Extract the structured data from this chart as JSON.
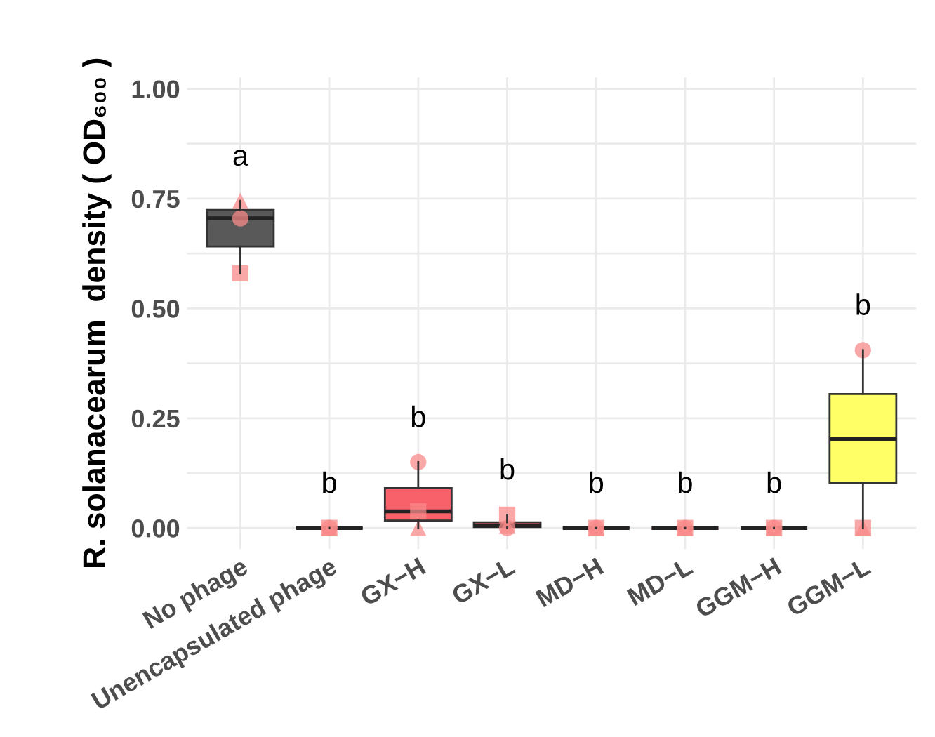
{
  "chart_data": {
    "type": "box",
    "ylabel": "R. solanacearum  density ( OD₆₀₀ )",
    "categories": [
      "No phage",
      "Unencapsulated phage",
      "GX−H",
      "GX−L",
      "MD−H",
      "MD−L",
      "GGM−H",
      "GGM−L"
    ],
    "colors": [
      "#595959",
      "#595959",
      "#f8606a",
      "#f8606a",
      "#f8606a",
      "#f8606a",
      "#ffff66",
      "#ffff66"
    ],
    "boxes": [
      {
        "low": 0.58,
        "q1": 0.641,
        "median": 0.705,
        "q3": 0.724,
        "high": 0.745
      },
      {
        "low": 0.0,
        "q1": 0.0,
        "median": 0.0,
        "q3": 0.0,
        "high": 0.0
      },
      {
        "low": 0.0,
        "q1": 0.017,
        "median": 0.038,
        "q3": 0.091,
        "high": 0.15
      },
      {
        "low": 0.0,
        "q1": 0.002,
        "median": 0.005,
        "q3": 0.013,
        "high": 0.03
      },
      {
        "low": 0.0,
        "q1": 0.0,
        "median": 0.0,
        "q3": 0.0,
        "high": 0.0
      },
      {
        "low": 0.0,
        "q1": 0.0,
        "median": 0.0,
        "q3": 0.0,
        "high": 0.0
      },
      {
        "low": 0.0,
        "q1": 0.0,
        "median": 0.0,
        "q3": 0.0,
        "high": 0.0
      },
      {
        "low": 0.0,
        "q1": 0.103,
        "median": 0.202,
        "q3": 0.305,
        "high": 0.405
      }
    ],
    "series": [
      {
        "type": "scatter",
        "marker": "circle",
        "color": "#f8898a",
        "x": [
          "No phage",
          "Unencapsulated phage",
          "GX−H",
          "GX−L",
          "MD−H",
          "MD−L",
          "GGM−H",
          "GGM−L"
        ],
        "values": [
          0.705,
          0.0,
          0.15,
          0.0,
          0.0,
          0.0,
          0.0,
          0.405
        ]
      },
      {
        "type": "scatter",
        "marker": "square",
        "color": "#f8898a",
        "x": [
          "No phage",
          "Unencapsulated phage",
          "GX−H",
          "GX−L",
          "MD−H",
          "MD−L",
          "GGM−H",
          "GGM−L"
        ],
        "values": [
          0.58,
          0.0,
          0.038,
          0.03,
          0.0,
          0.0,
          0.0,
          0.0
        ]
      },
      {
        "type": "scatter",
        "marker": "triangle",
        "color": "#f8898a",
        "x": [
          "No phage",
          "Unencapsulated phage",
          "GX−H",
          "GX−L",
          "MD−H",
          "MD−L",
          "GGM−H",
          "GGM−L"
        ],
        "values": [
          0.745,
          0.0,
          0.0,
          0.005,
          0.0,
          0.0,
          0.0,
          0.0
        ]
      }
    ],
    "annotations": [
      "a",
      "b",
      "b",
      "b",
      "b",
      "b",
      "b",
      "b"
    ],
    "ylim": [
      -0.048,
      1.026
    ],
    "yticks": [
      "0.00",
      {
        "value": 0.125,
        "label": null
      },
      {
        "value": 0.25,
        "label": "0.25"
      },
      {
        "value": 0.375,
        "label": null
      },
      {
        "value": 0.5,
        "label": "0.50"
      },
      {
        "value": 0.625,
        "label": null
      },
      {
        "value": 0.75,
        "label": "0.75"
      },
      {
        "value": 0.875,
        "label": null
      },
      {
        "value": 1.0,
        "label": "1.00"
      }
    ],
    "grid": true
  }
}
